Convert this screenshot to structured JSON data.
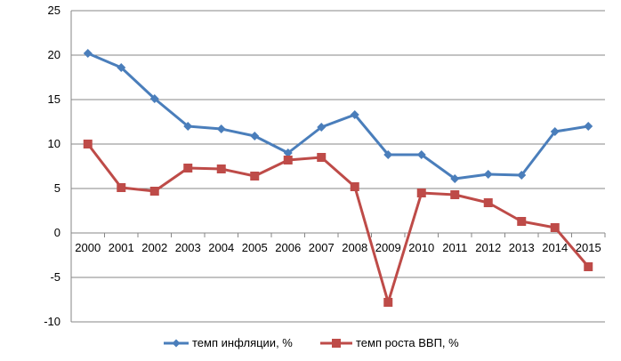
{
  "chart_data": {
    "type": "line",
    "title": "",
    "xlabel": "",
    "ylabel": "",
    "ylim": [
      -10,
      25
    ],
    "yticks": [
      25,
      20,
      15,
      10,
      5,
      0,
      -5,
      -10
    ],
    "grid": "horizontal",
    "legend_position": "bottom",
    "categories": [
      "2000",
      "2001",
      "2002",
      "2003",
      "2004",
      "2005",
      "2006",
      "2007",
      "2008",
      "2009",
      "2010",
      "2011",
      "2012",
      "2013",
      "2014",
      "2015"
    ],
    "series": [
      {
        "name": "темп инфляции, %",
        "color": "#4a7ebb",
        "marker": "diamond",
        "values": [
          20.2,
          18.6,
          15.1,
          12.0,
          11.7,
          10.9,
          9.0,
          11.9,
          13.3,
          8.8,
          8.8,
          6.1,
          6.6,
          6.5,
          11.4,
          12.0
        ]
      },
      {
        "name": "темп роста ВВП, %",
        "color": "#be4b48",
        "marker": "square",
        "values": [
          10.0,
          5.1,
          4.7,
          7.3,
          7.2,
          6.4,
          8.2,
          8.5,
          5.2,
          -7.8,
          4.5,
          4.3,
          3.4,
          1.3,
          0.6,
          -3.8
        ]
      }
    ]
  }
}
